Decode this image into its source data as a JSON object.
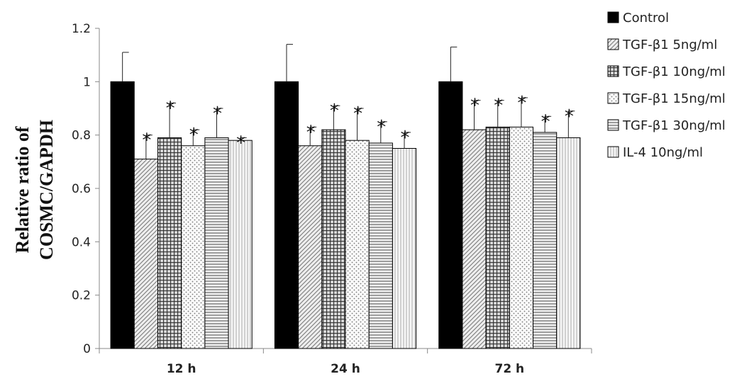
{
  "chart_data": {
    "type": "bar",
    "title": "",
    "xlabel": "",
    "ylabel_lines": [
      "Relative ratio of",
      "COSMC/GAPDH"
    ],
    "ylim": [
      0,
      1.2
    ],
    "yticks": [
      "0",
      "0.2",
      "0.4",
      "0.6",
      "0.8",
      "1",
      "1.2"
    ],
    "ytick_values": [
      0,
      0.2,
      0.4,
      0.6,
      0.8,
      1.0,
      1.2
    ],
    "categories": [
      "12 h",
      "24 h",
      "72 h"
    ],
    "legend_position": "right",
    "significance_marker": "*",
    "series": [
      {
        "name": "Control",
        "fill": "solid-black",
        "values": [
          1.0,
          1.0,
          1.0
        ],
        "errors": [
          0.11,
          0.14,
          0.13
        ],
        "significant": [
          false,
          false,
          false
        ]
      },
      {
        "name": "TGF-β1 5ng/ml",
        "fill": "diagonal-hatch",
        "values": [
          0.71,
          0.76,
          0.82
        ],
        "errors": [
          0.09,
          0.07,
          0.11
        ],
        "significant": [
          true,
          true,
          true
        ]
      },
      {
        "name": "TGF-β1 10ng/ml",
        "fill": "grid-hatch",
        "values": [
          0.79,
          0.82,
          0.83
        ],
        "errors": [
          0.13,
          0.09,
          0.1
        ],
        "significant": [
          true,
          true,
          true
        ]
      },
      {
        "name": "TGF-β1 15ng/ml",
        "fill": "dots",
        "values": [
          0.76,
          0.78,
          0.83
        ],
        "errors": [
          0.06,
          0.12,
          0.11
        ],
        "significant": [
          true,
          true,
          true
        ]
      },
      {
        "name": "TGF-β1 30ng/ml",
        "fill": "horizontal-lines",
        "values": [
          0.79,
          0.77,
          0.81
        ],
        "errors": [
          0.11,
          0.08,
          0.06
        ],
        "significant": [
          true,
          true,
          true
        ]
      },
      {
        "name": "IL-4 10ng/ml",
        "fill": "vertical-lines",
        "values": [
          0.78,
          0.75,
          0.79
        ],
        "errors": [
          0.01,
          0.06,
          0.1
        ],
        "significant": [
          true,
          true,
          true
        ]
      }
    ]
  }
}
